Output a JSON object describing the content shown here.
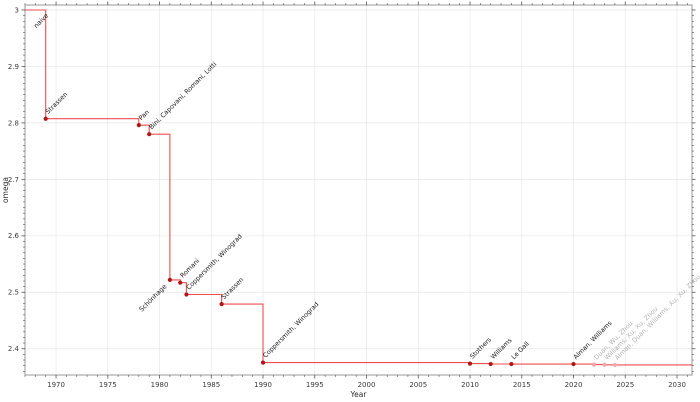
{
  "chart_data": {
    "type": "line",
    "step": "post",
    "title": "",
    "xlabel": "Year",
    "ylabel": "omega",
    "legend": "none",
    "grid": true,
    "xlim": [
      1967,
      2031.45
    ],
    "ylim": [
      2.3535,
      3.0088
    ],
    "x_ticks": [
      1970,
      1975,
      1980,
      1985,
      1990,
      1995,
      2000,
      2005,
      2010,
      2015,
      2020,
      2025,
      2030
    ],
    "x_minor_step": 1,
    "y_ticks": [
      {
        "value": 3.0,
        "label": "3"
      },
      {
        "value": 2.9,
        "label": "2.9"
      },
      {
        "value": 2.8,
        "label": "2.8"
      },
      {
        "value": 2.7,
        "label": "2.7"
      },
      {
        "value": 2.6,
        "label": "2.6"
      },
      {
        "value": 2.5,
        "label": "2.5"
      },
      {
        "value": 2.4,
        "label": "2.4"
      }
    ],
    "y_minor_step": 0.01,
    "colors": {
      "line": "#ee3b3b",
      "marker": "#b31414",
      "marker_recent": "#f2a6a6",
      "label": "#1a1a1a",
      "label_recent": "#b3b3b3",
      "grid": "#e7e7e7",
      "spine": "#7f7f7f",
      "tick": "#555555"
    },
    "points": [
      {
        "year": 1969,
        "omega": 3.0,
        "label": "naive",
        "label_side": "below",
        "marker": false,
        "recent": false
      },
      {
        "year": 1969,
        "omega": 2.8074,
        "label": "Strassen",
        "label_side": "above",
        "marker": true,
        "recent": false
      },
      {
        "year": 1978,
        "omega": 2.796,
        "label": "Pan",
        "label_side": "above",
        "marker": true,
        "recent": false
      },
      {
        "year": 1979,
        "omega": 2.78,
        "label": "Bini, Capovani, Romani, Lotti",
        "label_side": "above",
        "marker": true,
        "recent": false
      },
      {
        "year": 1981,
        "omega": 2.522,
        "label": "Schönhage",
        "label_side": "below",
        "marker": true,
        "recent": false
      },
      {
        "year": 1982,
        "omega": 2.517,
        "label": "Romani",
        "label_side": "above",
        "marker": true,
        "recent": false
      },
      {
        "year": 1982,
        "plot_year": 1982.6,
        "omega": 2.496,
        "label": "Coppersmith, Winograd",
        "label_side": "above",
        "marker": true,
        "recent": false
      },
      {
        "year": 1986,
        "omega": 2.479,
        "label": "Strassen",
        "label_side": "above",
        "marker": true,
        "recent": false
      },
      {
        "year": 1990,
        "omega": 2.3755,
        "label": "Coppersmith, Winograd",
        "label_side": "above",
        "marker": true,
        "recent": false
      },
      {
        "year": 2010,
        "omega": 2.3737,
        "label": "Stothers",
        "label_side": "above",
        "marker": true,
        "recent": false
      },
      {
        "year": 2012,
        "omega": 2.3729,
        "label": "Williams",
        "label_side": "above",
        "marker": true,
        "recent": false
      },
      {
        "year": 2014,
        "omega": 2.3728639,
        "label": "Le Gall",
        "label_side": "above",
        "marker": true,
        "recent": false
      },
      {
        "year": 2020,
        "omega": 2.3728596,
        "label": "Alman, Williams",
        "label_side": "above",
        "marker": true,
        "recent": false
      },
      {
        "year": 2022,
        "omega": 2.37188,
        "label": "Duan, Wu, Zhou",
        "label_side": "above",
        "marker": true,
        "recent": true
      },
      {
        "year": 2023,
        "omega": 2.371552,
        "label": "Williams, Xu, Xu, Zhou",
        "label_side": "above",
        "marker": true,
        "recent": true
      },
      {
        "year": 2024,
        "omega": 2.371339,
        "label": "Alman, Duan, Williams, Xu, Xu, Zhou",
        "label_side": "above",
        "marker": true,
        "recent": true
      }
    ]
  }
}
